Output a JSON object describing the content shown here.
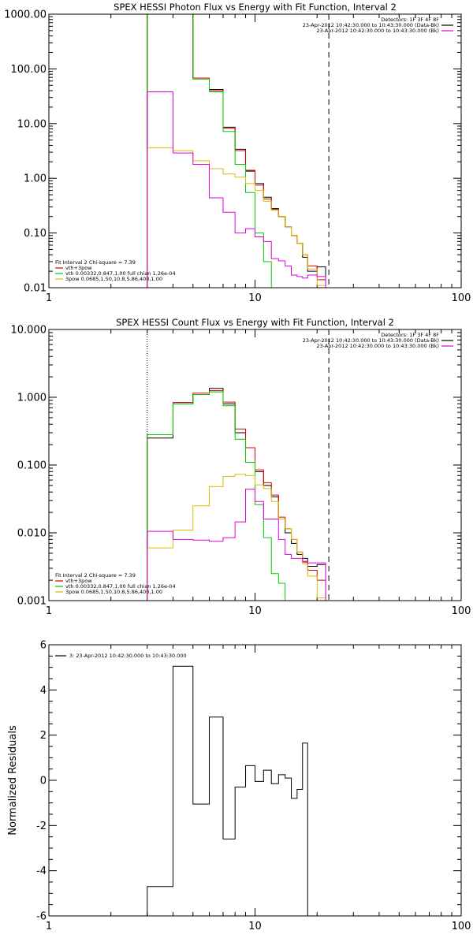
{
  "colors": {
    "data": "#000000",
    "total": "#dd0000",
    "thermal": "#00cc00",
    "powerlaw": "#ddbb00",
    "background": "#dd00dd"
  },
  "chart_data": [
    {
      "id": "photon",
      "type": "line",
      "title": "SPEX HESSI Photon Flux vs Energy with Fit Function, Interval 2",
      "xscale": "log",
      "yscale": "log",
      "xlim": [
        1,
        100
      ],
      "ylim": [
        0.01,
        1000
      ],
      "xticks": [
        "1",
        "10",
        "100"
      ],
      "yticks": [
        "0.01",
        "0.10",
        "1.00",
        "10.00",
        "100.00",
        "1000.00"
      ],
      "vlines": [
        {
          "x": 3.0,
          "style": "dotted"
        },
        {
          "x": 22.8,
          "style": "dashed"
        }
      ],
      "legend_top": {
        "position": "top-right",
        "header": "Detectors: 1F 3F 4F 8F",
        "entries": [
          {
            "label": "23-Apr-2012 10:42:30.000 to 10:43:30.000 (Data-Bk)",
            "color": "#000000"
          },
          {
            "label": "23-Apr-2012 10:42:30.000 to 10:43:30.000 (Bk)",
            "color": "#dd00dd"
          }
        ]
      },
      "legend_fit": {
        "position": "bottom-left",
        "header": "Fit Interval  2   Chi-square = 7.39",
        "entries": [
          {
            "label": "vth+3pow",
            "color": "#dd0000"
          },
          {
            "label": "vth 0.00332,0.847,1.00  full chian 1.26e-04",
            "color": "#00cc00"
          },
          {
            "label": "3pow 0.0685,1.50,10.8,5.86,400,1.00",
            "color": "#ddbb00"
          }
        ]
      },
      "edges": [
        3.0,
        4.0,
        5.0,
        6.0,
        7.0,
        8.0,
        9.0,
        10.0,
        11.0,
        12.0,
        13.0,
        14.0,
        15.0,
        16.0,
        17.0,
        18.0,
        20.0,
        22.0
      ],
      "series": [
        {
          "key": "data",
          "color": "#000000",
          "values": [
            1000,
            1000,
            68,
            42,
            8.6,
            3.4,
            1.35,
            0.8,
            0.45,
            0.28,
            0.2,
            0.13,
            0.09,
            0.065,
            0.036,
            0.02,
            0.024
          ]
        },
        {
          "key": "total",
          "color": "#dd0000",
          "values": [
            1000,
            1000,
            68,
            40,
            8.2,
            3.2,
            1.4,
            0.75,
            0.42,
            0.27,
            0.2,
            0.13,
            0.09,
            0.065,
            0.04,
            0.025,
            0.014
          ]
        },
        {
          "key": "thermal",
          "color": "#00cc00",
          "values": [
            1000,
            1000,
            65,
            38,
            7.2,
            1.8,
            0.55,
            0.1,
            0.03,
            0.004
          ]
        },
        {
          "key": "powerlaw",
          "color": "#ddbb00",
          "values": [
            3.6,
            3.2,
            2.1,
            1.5,
            1.2,
            1.05,
            0.8,
            0.6,
            0.38,
            0.26,
            0.2,
            0.13,
            0.09,
            0.065,
            0.04,
            0.022,
            0.011
          ]
        },
        {
          "key": "background",
          "color": "#dd00dd",
          "values": [
            38,
            2.9,
            1.8,
            0.44,
            0.24,
            0.1,
            0.12,
            0.085,
            0.07,
            0.034,
            0.031,
            0.025,
            0.017,
            0.016,
            0.015,
            0.017,
            0.016
          ]
        }
      ]
    },
    {
      "id": "count",
      "type": "line",
      "title": "SPEX HESSI Count Flux vs Energy with Fit Function, Interval 2",
      "xscale": "log",
      "yscale": "log",
      "xlim": [
        1,
        100
      ],
      "ylim": [
        0.001,
        10
      ],
      "xticks": [
        "1",
        "10",
        "100"
      ],
      "yticks": [
        "0.001",
        "0.010",
        "0.100",
        "1.000",
        "10.000"
      ],
      "vlines": [
        {
          "x": 3.0,
          "style": "dotted"
        },
        {
          "x": 22.8,
          "style": "dashed"
        }
      ],
      "legend_top": {
        "position": "top-right",
        "header": "Detectors: 1F 3F 4F 8F",
        "entries": [
          {
            "label": "23-Apr-2012 10:42:30.000 to 10:43:30.000 (Data-Bk)",
            "color": "#000000"
          },
          {
            "label": "23-Apr-2012 10:42:30.000 to 10:43:30.000 (Bk)",
            "color": "#dd00dd"
          }
        ]
      },
      "legend_fit": {
        "position": "bottom-left",
        "header": "Fit Interval  2   Chi-square = 7.39",
        "entries": [
          {
            "label": "vth+3pow",
            "color": "#dd0000"
          },
          {
            "label": "vth 0.00332,0.847,1.00  full chian 1.26e-04",
            "color": "#00cc00"
          },
          {
            "label": "3pow 0.0685,1.50,10.8,5.86,400,1.00",
            "color": "#ddbb00"
          }
        ]
      },
      "edges": [
        3.0,
        4.0,
        5.0,
        6.0,
        7.0,
        8.0,
        9.0,
        10.0,
        11.0,
        12.0,
        13.0,
        14.0,
        15.0,
        16.0,
        17.0,
        18.0,
        20.0,
        22.0
      ],
      "series": [
        {
          "key": "data",
          "color": "#000000",
          "values": [
            0.25,
            0.8,
            1.1,
            1.35,
            0.8,
            0.3,
            0.18,
            0.08,
            0.05,
            0.034,
            0.016,
            0.01,
            0.007,
            0.0048,
            0.0042,
            0.0032,
            0.0034
          ]
        },
        {
          "key": "total",
          "color": "#dd0000",
          "values": [
            0.28,
            0.84,
            1.15,
            1.25,
            0.85,
            0.34,
            0.18,
            0.085,
            0.055,
            0.036,
            0.017,
            0.0115,
            0.008,
            0.0052,
            0.0037,
            0.0028,
            0.002
          ]
        },
        {
          "key": "thermal",
          "color": "#00cc00",
          "values": [
            0.28,
            0.8,
            1.1,
            1.2,
            0.75,
            0.24,
            0.11,
            0.026,
            0.0085,
            0.0025,
            0.0018,
            0.001
          ]
        },
        {
          "key": "powerlaw",
          "color": "#ddbb00",
          "values": [
            0.006,
            0.011,
            0.025,
            0.048,
            0.068,
            0.073,
            0.07,
            0.051,
            0.045,
            0.029,
            0.016,
            0.0115,
            0.008,
            0.0052,
            0.0035,
            0.0023,
            0.0011
          ]
        },
        {
          "key": "background",
          "color": "#dd00dd",
          "values": [
            0.0105,
            0.008,
            0.0078,
            0.0075,
            0.0085,
            0.0145,
            0.044,
            0.029,
            0.016,
            0.016,
            0.008,
            0.0048,
            0.0042,
            0.0042,
            0.0038,
            0.0036,
            0.0036
          ]
        }
      ]
    },
    {
      "id": "resid",
      "type": "line",
      "title": "",
      "xscale": "log",
      "yscale": "linear",
      "xlim": [
        1,
        100
      ],
      "ylim": [
        -6,
        6
      ],
      "ylabel": "Normalized Residuals",
      "xticks": [
        "1",
        "10",
        "100"
      ],
      "yticks": [
        "-6",
        "-4",
        "-2",
        "0",
        "2",
        "4",
        "6"
      ],
      "legend_top": {
        "position": "top-left",
        "entries": [
          {
            "label": "3: 23-Apr-2012 10:42:30.000 to 10:43:30.000",
            "color": "#000000"
          }
        ]
      },
      "edges": [
        3.0,
        4.0,
        5.0,
        6.0,
        7.0,
        8.0,
        9.0,
        10.0,
        11.0,
        12.0,
        13.0,
        14.0,
        15.0,
        16.0,
        17.0,
        18.0,
        20.0,
        22.0
      ],
      "series": [
        {
          "key": "data",
          "color": "#000000",
          "values": [
            -4.7,
            5.05,
            -1.05,
            2.8,
            -2.6,
            -0.3,
            0.65,
            -0.05,
            0.45,
            -0.15,
            0.25,
            0.1,
            -0.8,
            -0.4,
            1.65,
            null,
            null
          ]
        }
      ]
    }
  ]
}
